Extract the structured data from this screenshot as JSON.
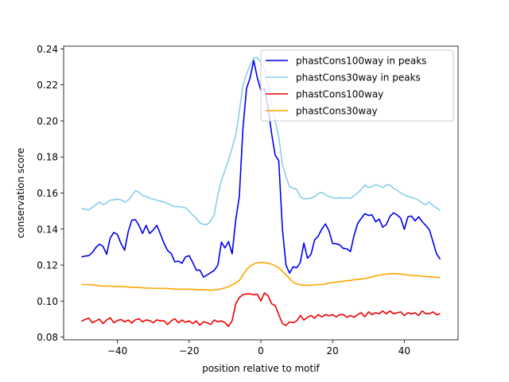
{
  "chart_data": {
    "type": "line",
    "title": "",
    "xlabel": "position relative to motif",
    "ylabel": "conservation score",
    "xlim": [
      -55,
      55
    ],
    "ylim": [
      0.0785,
      0.2415
    ],
    "xticks": [
      -40,
      -20,
      0,
      20,
      40
    ],
    "yticks": [
      0.08,
      0.1,
      0.12,
      0.14,
      0.16,
      0.18,
      0.2,
      0.22,
      0.24
    ],
    "ytick_labels": [
      "0.08",
      "0.10",
      "0.12",
      "0.14",
      "0.16",
      "0.18",
      "0.20",
      "0.22",
      "0.24"
    ],
    "grid": false,
    "legend": "top-right",
    "x": [
      -50,
      -49,
      -48,
      -47,
      -46,
      -45,
      -44,
      -43,
      -42,
      -41,
      -40,
      -39,
      -38,
      -37,
      -36,
      -35,
      -34,
      -33,
      -32,
      -31,
      -30,
      -29,
      -28,
      -27,
      -26,
      -25,
      -24,
      -23,
      -22,
      -21,
      -20,
      -19,
      -18,
      -17,
      -16,
      -15,
      -14,
      -13,
      -12,
      -11,
      -10,
      -9,
      -8,
      -7,
      -6,
      -5,
      -4,
      -3,
      -2,
      -1,
      0,
      1,
      2,
      3,
      4,
      5,
      6,
      7,
      8,
      9,
      10,
      11,
      12,
      13,
      14,
      15,
      16,
      17,
      18,
      19,
      20,
      21,
      22,
      23,
      24,
      25,
      26,
      27,
      28,
      29,
      30,
      31,
      32,
      33,
      34,
      35,
      36,
      37,
      38,
      39,
      40,
      41,
      42,
      43,
      44,
      45,
      46,
      47,
      48,
      49,
      50
    ],
    "series": [
      {
        "name": "phastCons100way in peaks",
        "color": "#0000ee",
        "values": [
          0.1245,
          0.125,
          0.1252,
          0.127,
          0.1298,
          0.1316,
          0.1303,
          0.126,
          0.135,
          0.1381,
          0.137,
          0.132,
          0.1282,
          0.1385,
          0.1449,
          0.1452,
          0.142,
          0.1375,
          0.142,
          0.1375,
          0.1395,
          0.142,
          0.1372,
          0.132,
          0.128,
          0.1264,
          0.1218,
          0.1222,
          0.121,
          0.1245,
          0.1252,
          0.1215,
          0.1172,
          0.1172,
          0.1133,
          0.1145,
          0.1158,
          0.117,
          0.12,
          0.1327,
          0.1295,
          0.133,
          0.1262,
          0.145,
          0.158,
          0.196,
          0.218,
          0.224,
          0.2335,
          0.224,
          0.217,
          0.218,
          0.208,
          0.193,
          0.181,
          0.178,
          0.14,
          0.12,
          0.1155,
          0.119,
          0.1185,
          0.1215,
          0.1322,
          0.1238,
          0.126,
          0.134,
          0.136,
          0.14,
          0.1428,
          0.139,
          0.132,
          0.1318,
          0.1312,
          0.1292,
          0.129,
          0.1275,
          0.1365,
          0.143,
          0.146,
          0.1485,
          0.1476,
          0.1478,
          0.144,
          0.1455,
          0.141,
          0.1425,
          0.147,
          0.149,
          0.1478,
          0.146,
          0.1398,
          0.1468,
          0.1472,
          0.1445,
          0.1468,
          0.144,
          0.142,
          0.1395,
          0.133,
          0.1262,
          0.1232
        ]
      },
      {
        "name": "phastCons30way in peaks",
        "color": "#87ceeb",
        "values": [
          0.1515,
          0.151,
          0.1507,
          0.152,
          0.1535,
          0.155,
          0.1535,
          0.1545,
          0.156,
          0.1563,
          0.1566,
          0.1562,
          0.155,
          0.156,
          0.1585,
          0.1612,
          0.1605,
          0.1585,
          0.1582,
          0.157,
          0.1567,
          0.156,
          0.1555,
          0.155,
          0.1542,
          0.1532,
          0.1524,
          0.1525,
          0.1522,
          0.1518,
          0.15,
          0.1478,
          0.146,
          0.1435,
          0.1425,
          0.1425,
          0.1445,
          0.148,
          0.159,
          0.167,
          0.1725,
          0.1785,
          0.185,
          0.192,
          0.205,
          0.22,
          0.226,
          0.231,
          0.235,
          0.2352,
          0.2325,
          0.2285,
          0.22,
          0.21,
          0.2,
          0.191,
          0.176,
          0.169,
          0.1635,
          0.1628,
          0.162,
          0.158,
          0.1568,
          0.1568,
          0.1572,
          0.158,
          0.1598,
          0.1603,
          0.159,
          0.158,
          0.1575,
          0.157,
          0.1575,
          0.157,
          0.1574,
          0.157,
          0.1585,
          0.16,
          0.162,
          0.1645,
          0.163,
          0.1635,
          0.1645,
          0.164,
          0.163,
          0.1645,
          0.1645,
          0.1625,
          0.1615,
          0.16,
          0.159,
          0.158,
          0.1575,
          0.157,
          0.156,
          0.1545,
          0.1535,
          0.155,
          0.153,
          0.1518,
          0.1503
        ]
      },
      {
        "name": "phastCons100way",
        "color": "#ee0000",
        "values": [
          0.0888,
          0.0898,
          0.0905,
          0.088,
          0.089,
          0.09,
          0.0875,
          0.0895,
          0.0908,
          0.088,
          0.0892,
          0.0898,
          0.0885,
          0.0895,
          0.0878,
          0.0896,
          0.0902,
          0.0885,
          0.0895,
          0.0892,
          0.088,
          0.0896,
          0.089,
          0.089,
          0.087,
          0.089,
          0.0902,
          0.088,
          0.0895,
          0.0882,
          0.089,
          0.0875,
          0.089,
          0.0866,
          0.0885,
          0.088,
          0.087,
          0.0895,
          0.0885,
          0.089,
          0.088,
          0.086,
          0.0892,
          0.0985,
          0.102,
          0.1035,
          0.104,
          0.104,
          0.1035,
          0.1038,
          0.1,
          0.1045,
          0.103,
          0.0985,
          0.0975,
          0.0925,
          0.0875,
          0.0865,
          0.0885,
          0.088,
          0.089,
          0.092,
          0.0895,
          0.091,
          0.092,
          0.0905,
          0.0925,
          0.0912,
          0.0925,
          0.0918,
          0.0925,
          0.0912,
          0.0925,
          0.0925,
          0.091,
          0.092,
          0.091,
          0.0925,
          0.0935,
          0.0912,
          0.094,
          0.0925,
          0.0935,
          0.093,
          0.0945,
          0.093,
          0.0945,
          0.093,
          0.0935,
          0.094,
          0.092,
          0.0935,
          0.093,
          0.0935,
          0.092,
          0.0945,
          0.093,
          0.093,
          0.094,
          0.0925,
          0.093
        ]
      },
      {
        "name": "phastCons30way",
        "color": "#ffa500",
        "values": [
          0.1092,
          0.1092,
          0.1092,
          0.109,
          0.1088,
          0.1085,
          0.1083,
          0.1083,
          0.1083,
          0.1082,
          0.1082,
          0.1081,
          0.108,
          0.1078,
          0.1076,
          0.1075,
          0.1075,
          0.1074,
          0.1072,
          0.1072,
          0.1071,
          0.1071,
          0.1071,
          0.1071,
          0.107,
          0.1068,
          0.1067,
          0.1066,
          0.1066,
          0.1066,
          0.1066,
          0.1065,
          0.1064,
          0.1063,
          0.1063,
          0.1062,
          0.106,
          0.1062,
          0.1064,
          0.1068,
          0.1073,
          0.108,
          0.109,
          0.11,
          0.1115,
          0.1145,
          0.1175,
          0.1195,
          0.1205,
          0.1212,
          0.1215,
          0.1213,
          0.121,
          0.1205,
          0.1195,
          0.1185,
          0.1165,
          0.1145,
          0.1125,
          0.1105,
          0.1095,
          0.109,
          0.1088,
          0.1088,
          0.1088,
          0.109,
          0.1092,
          0.1092,
          0.1095,
          0.11,
          0.1103,
          0.1105,
          0.1108,
          0.111,
          0.1113,
          0.1115,
          0.1118,
          0.112,
          0.1122,
          0.1125,
          0.113,
          0.1135,
          0.114,
          0.1143,
          0.1148,
          0.115,
          0.1152,
          0.1153,
          0.1152,
          0.115,
          0.1148,
          0.1145,
          0.1142,
          0.114,
          0.114,
          0.1138,
          0.1137,
          0.1135,
          0.1133,
          0.1132,
          0.1131
        ]
      }
    ]
  }
}
